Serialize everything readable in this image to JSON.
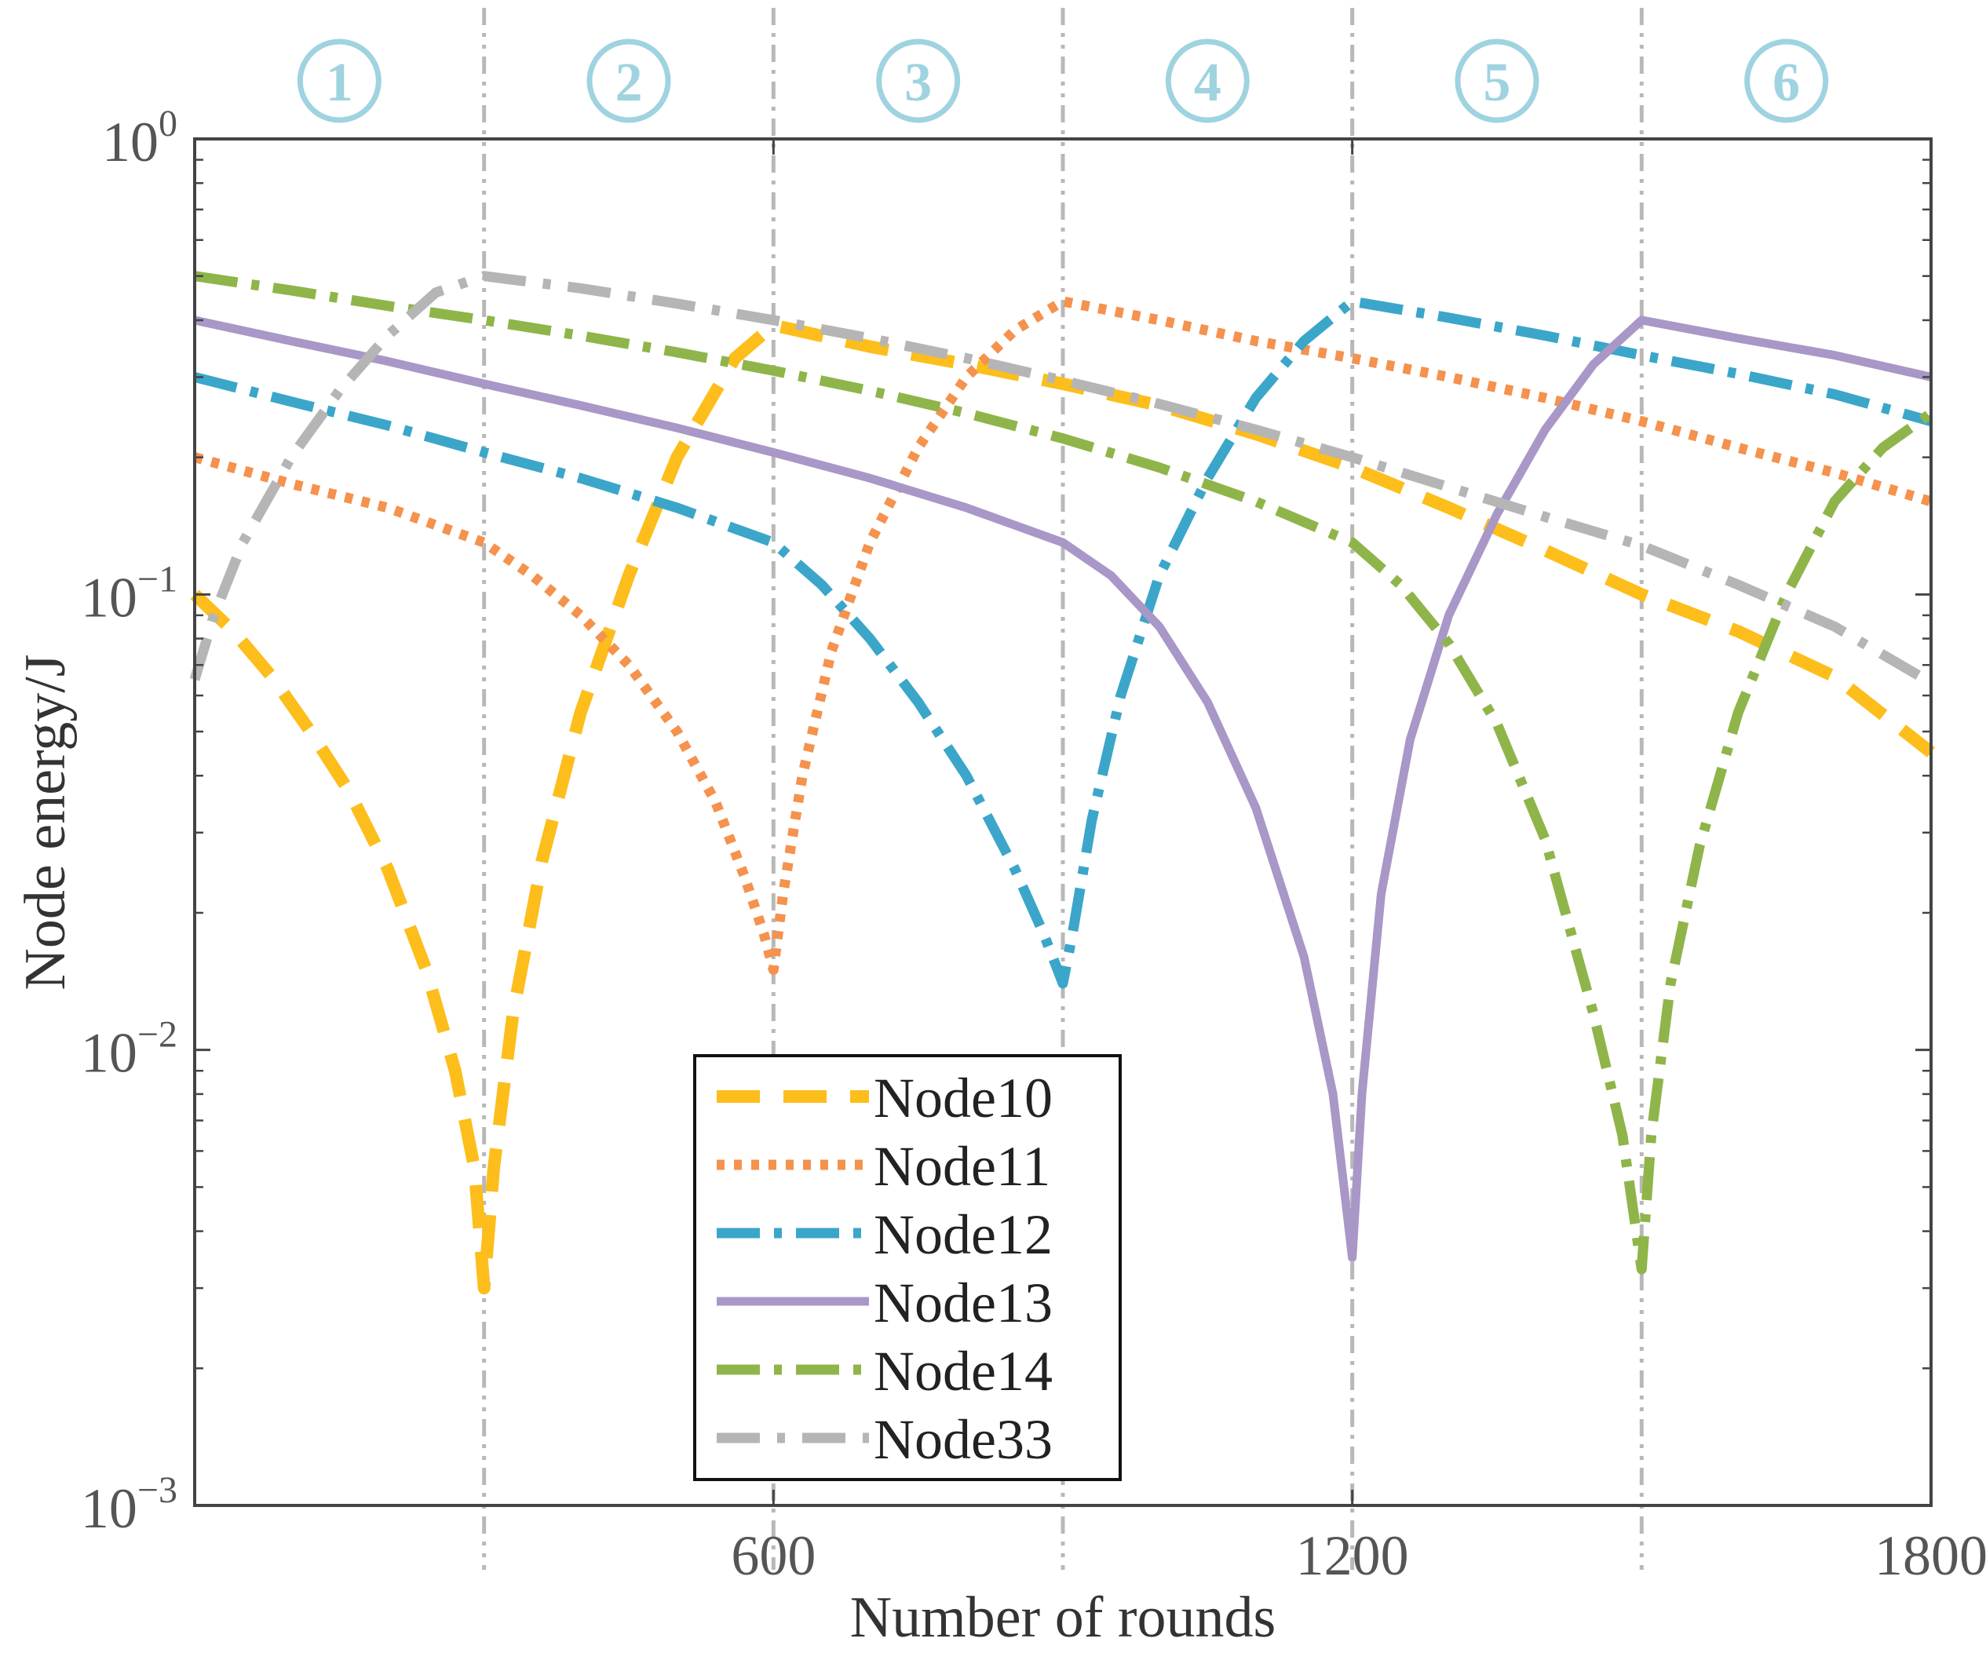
{
  "chart_data": {
    "type": "line",
    "title": "",
    "xlabel": "Number of rounds",
    "ylabel": "Node energy/J",
    "xlim": [
      0,
      1800
    ],
    "ylim": [
      0.001,
      1
    ],
    "yscale": "log",
    "grid": false,
    "xticks": [
      600,
      1200,
      1800
    ],
    "xtick_labels": [
      "600",
      "1200",
      "1800"
    ],
    "yticks": [
      {
        "value": 0.001,
        "base": "10",
        "exp": "−3"
      },
      {
        "value": 0.01,
        "base": "10",
        "exp": "−2"
      },
      {
        "value": 0.1,
        "base": "10",
        "exp": "−1"
      },
      {
        "value": 1,
        "base": "10",
        "exp": "0"
      }
    ],
    "phase_boundaries": [
      300,
      600,
      900,
      1200,
      1500
    ],
    "phases": [
      {
        "label": "①",
        "x": 150
      },
      {
        "label": "②",
        "x": 450
      },
      {
        "label": "③",
        "x": 750
      },
      {
        "label": "④",
        "x": 1050
      },
      {
        "label": "⑤",
        "x": 1350
      },
      {
        "label": "⑥",
        "x": 1650
      }
    ],
    "phase_color": "#9fd3e0",
    "legend_position": "bottom-center",
    "series": [
      {
        "name": "Node10",
        "color": "#fdbd1b",
        "dash": "dashed",
        "x": [
          0,
          40,
          80,
          120,
          160,
          200,
          240,
          270,
          290,
          300,
          310,
          330,
          360,
          400,
          450,
          500,
          560,
          600,
          700,
          800,
          900,
          1000,
          1100,
          1200,
          1300,
          1400,
          1500,
          1600,
          1700,
          1800
        ],
        "y": [
          0.1,
          0.083,
          0.066,
          0.05,
          0.037,
          0.025,
          0.015,
          0.009,
          0.0055,
          0.003,
          0.0055,
          0.012,
          0.026,
          0.055,
          0.11,
          0.2,
          0.33,
          0.39,
          0.35,
          0.32,
          0.29,
          0.26,
          0.225,
          0.19,
          0.155,
          0.125,
          0.1,
          0.083,
          0.066,
          0.045
        ]
      },
      {
        "name": "Node11",
        "color": "#f4924e",
        "dash": "dotted",
        "x": [
          0,
          100,
          200,
          300,
          350,
          400,
          450,
          500,
          540,
          570,
          590,
          600,
          610,
          630,
          660,
          700,
          750,
          800,
          850,
          900,
          1000,
          1100,
          1200,
          1300,
          1400,
          1500,
          1600,
          1700,
          1800
        ],
        "y": [
          0.2,
          0.175,
          0.155,
          0.13,
          0.11,
          0.09,
          0.07,
          0.05,
          0.035,
          0.024,
          0.018,
          0.015,
          0.022,
          0.04,
          0.075,
          0.13,
          0.21,
          0.3,
          0.38,
          0.44,
          0.4,
          0.36,
          0.33,
          0.3,
          0.27,
          0.24,
          0.21,
          0.185,
          0.16
        ]
      },
      {
        "name": "Node12",
        "color": "#3ba6c9",
        "dash": "dashdot",
        "x": [
          0,
          100,
          200,
          300,
          400,
          500,
          600,
          650,
          700,
          750,
          800,
          850,
          880,
          900,
          910,
          930,
          960,
          1000,
          1050,
          1100,
          1150,
          1200,
          1300,
          1400,
          1500,
          1600,
          1700,
          1800
        ],
        "y": [
          0.3,
          0.265,
          0.235,
          0.205,
          0.18,
          0.155,
          0.13,
          0.105,
          0.08,
          0.058,
          0.04,
          0.025,
          0.018,
          0.014,
          0.018,
          0.032,
          0.06,
          0.11,
          0.18,
          0.27,
          0.36,
          0.44,
          0.405,
          0.37,
          0.335,
          0.305,
          0.275,
          0.24
        ]
      },
      {
        "name": "Node13",
        "color": "#a897c7",
        "dash": "solid",
        "x": [
          0,
          100,
          200,
          300,
          400,
          500,
          600,
          700,
          800,
          900,
          950,
          1000,
          1050,
          1100,
          1150,
          1180,
          1200,
          1210,
          1230,
          1260,
          1300,
          1350,
          1400,
          1450,
          1500,
          1600,
          1700,
          1800
        ],
        "y": [
          0.4,
          0.36,
          0.325,
          0.29,
          0.26,
          0.232,
          0.205,
          0.18,
          0.155,
          0.13,
          0.11,
          0.085,
          0.058,
          0.034,
          0.016,
          0.008,
          0.0035,
          0.008,
          0.022,
          0.048,
          0.09,
          0.15,
          0.23,
          0.32,
          0.4,
          0.365,
          0.335,
          0.3
        ]
      },
      {
        "name": "Node14",
        "color": "#8fb54a",
        "dash": "dashdot",
        "x": [
          0,
          100,
          200,
          300,
          400,
          500,
          600,
          700,
          800,
          900,
          1000,
          1100,
          1200,
          1250,
          1300,
          1350,
          1400,
          1450,
          1480,
          1500,
          1510,
          1530,
          1560,
          1600,
          1650,
          1700,
          1750,
          1800
        ],
        "y": [
          0.5,
          0.465,
          0.43,
          0.4,
          0.37,
          0.34,
          0.31,
          0.28,
          0.25,
          0.22,
          0.19,
          0.16,
          0.13,
          0.105,
          0.078,
          0.052,
          0.029,
          0.012,
          0.0065,
          0.0033,
          0.0065,
          0.014,
          0.028,
          0.055,
          0.1,
          0.16,
          0.21,
          0.25
        ]
      },
      {
        "name": "Node33",
        "color": "#b5b5b5",
        "dash": "dashdot2",
        "x": [
          0,
          20,
          50,
          100,
          150,
          200,
          250,
          300,
          400,
          500,
          600,
          700,
          800,
          900,
          1000,
          1100,
          1200,
          1300,
          1400,
          1500,
          1600,
          1700,
          1800
        ],
        "y": [
          0.065,
          0.09,
          0.13,
          0.2,
          0.28,
          0.37,
          0.46,
          0.5,
          0.47,
          0.435,
          0.4,
          0.365,
          0.33,
          0.295,
          0.262,
          0.23,
          0.2,
          0.172,
          0.148,
          0.128,
          0.105,
          0.085,
          0.064
        ]
      }
    ]
  }
}
